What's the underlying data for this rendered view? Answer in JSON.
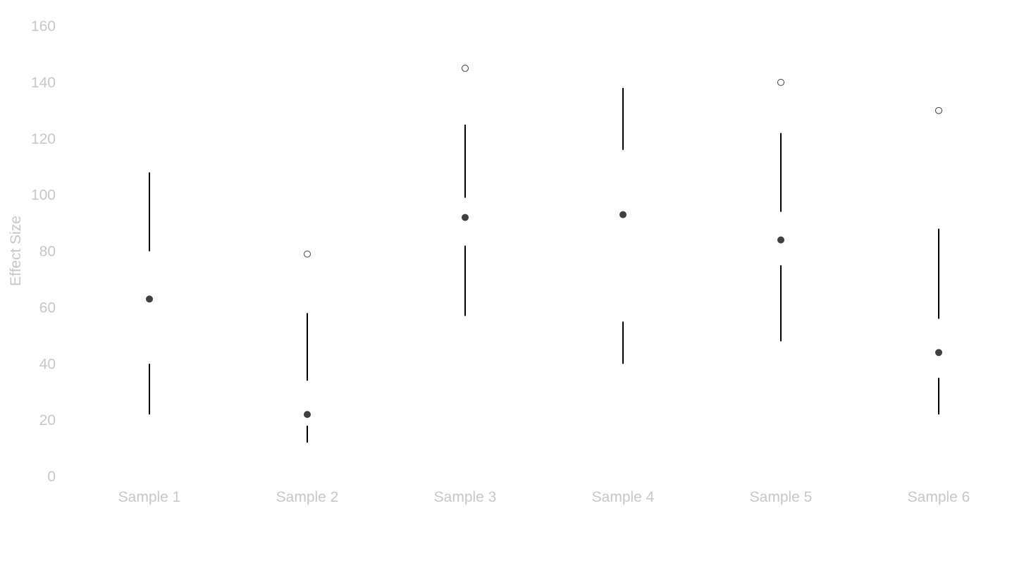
{
  "chart_data": {
    "type": "boxplot",
    "title": "",
    "xlabel": "",
    "ylabel": "Effect Size",
    "ylim": [
      0,
      160
    ],
    "yticks": [
      0,
      20,
      40,
      60,
      80,
      100,
      120,
      140,
      160
    ],
    "grid": false,
    "legend": "none",
    "colors": {
      "tick_text": "#c8c8c8",
      "whisker": "#000000",
      "median_dot": "#404040",
      "outlier_stroke": "#404040",
      "outlier_fill": "#ffffff"
    },
    "categories": [
      "Sample 1",
      "Sample 2",
      "Sample 3",
      "Sample 4",
      "Sample 5",
      "Sample 6"
    ],
    "boxes": [
      {
        "category": "Sample 1",
        "whisker_low": 22,
        "q1": 40,
        "median": 63,
        "q3": 80,
        "whisker_high": 108,
        "outliers": []
      },
      {
        "category": "Sample 2",
        "whisker_low": 12,
        "q1": 18,
        "median": 22,
        "q3": 34,
        "whisker_high": 58,
        "outliers": [
          79
        ]
      },
      {
        "category": "Sample 3",
        "whisker_low": 57,
        "q1": 82,
        "median": 92,
        "q3": 99,
        "whisker_high": 125,
        "outliers": [
          145
        ]
      },
      {
        "category": "Sample 4",
        "whisker_low": 40,
        "q1": 55,
        "median": 93,
        "q3": 116,
        "whisker_high": 138,
        "outliers": []
      },
      {
        "category": "Sample 5",
        "whisker_low": 48,
        "q1": 75,
        "median": 84,
        "q3": 94,
        "whisker_high": 122,
        "outliers": [
          140
        ]
      },
      {
        "category": "Sample 6",
        "whisker_low": 22,
        "q1": 35,
        "median": 44,
        "q3": 56,
        "whisker_high": 88,
        "outliers": [
          130
        ]
      }
    ]
  }
}
